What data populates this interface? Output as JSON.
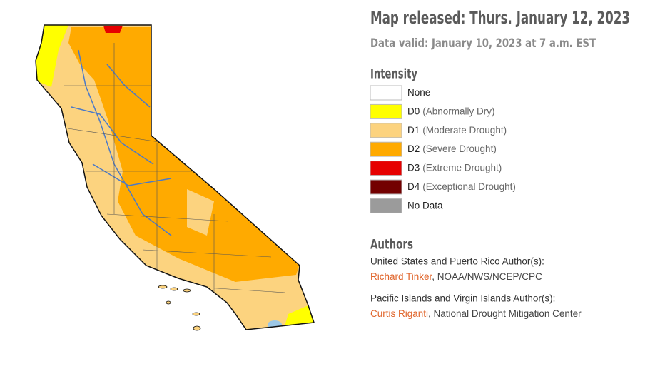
{
  "header": {
    "title": "Map released: Thurs. January 12, 2023",
    "subtitle": "Data valid: January 10, 2023 at 7 a.m. EST"
  },
  "legend": {
    "title": "Intensity",
    "items": [
      {
        "label": "None",
        "color": "#ffffff"
      },
      {
        "code": "D0",
        "label": "(Abnormally Dry)",
        "color": "#ffff00"
      },
      {
        "code": "D1",
        "label": "(Moderate Drought)",
        "color": "#fcd37f"
      },
      {
        "code": "D2",
        "label": "(Severe Drought)",
        "color": "#ffaa00"
      },
      {
        "code": "D3",
        "label": "(Extreme Drought)",
        "color": "#e60000"
      },
      {
        "code": "D4",
        "label": "(Exceptional Drought)",
        "color": "#730000"
      },
      {
        "label": "No Data",
        "color": "#9b9b9b"
      }
    ]
  },
  "authors": {
    "title": "Authors",
    "groups": [
      {
        "heading": "United States and Puerto Rico Author(s):",
        "name": "Richard Tinker",
        "affiliation": ", NOAA/NWS/NCEP/CPC"
      },
      {
        "heading": "Pacific Islands and Virgin Islands Author(s):",
        "name": "Curtis Riganti",
        "affiliation": ", National Drought Mitigation Center"
      }
    ]
  }
}
